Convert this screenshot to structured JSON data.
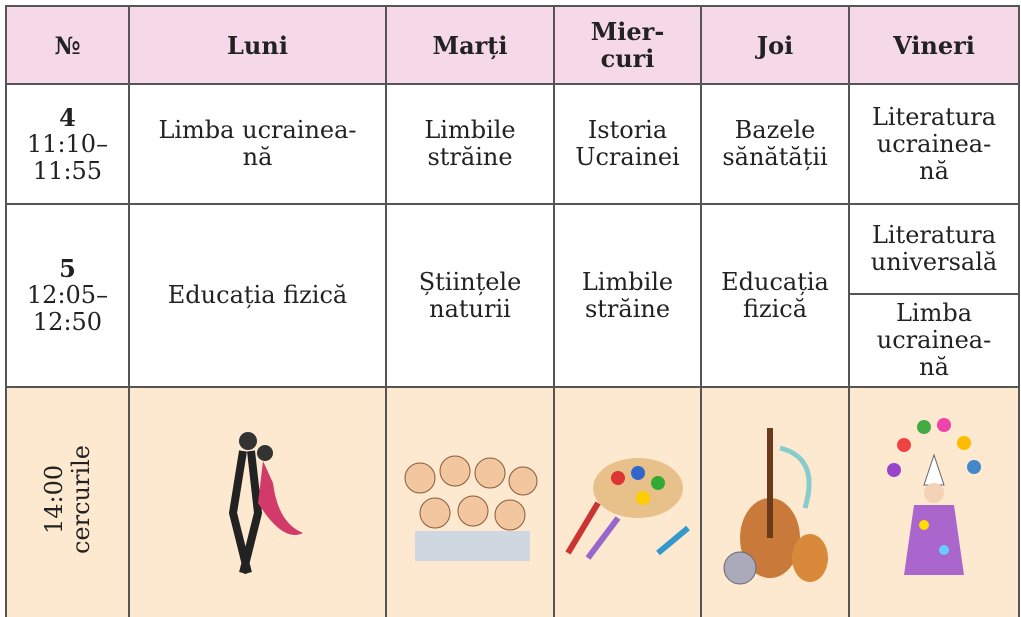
{
  "header": [
    "№",
    "Luni",
    "Marți",
    "Mier-\ncuri",
    "Joi",
    "Vineri"
  ],
  "rows": [
    {
      "number": "4",
      "time": "11:10–\n11:55",
      "lessons": [
        "Limba ucrainea-\nnă",
        "Limbile\nstrăine",
        "Istoria\nUcrainei",
        "Bazele\nsănătății",
        "Literatura\nucrainea-\nnă"
      ]
    },
    {
      "number": "5",
      "time": "12:05–\n12:50",
      "lessons": [
        "Educația fizică",
        "Științele\nnaturii",
        "Limbile\nstrăine",
        "Educația\nfizică",
        [
          "Literatura\nuniversală",
          "Limba\nucrainea-\nnă"
        ]
      ]
    }
  ],
  "clubs": {
    "label": "14:00\ncercurile"
  }
}
